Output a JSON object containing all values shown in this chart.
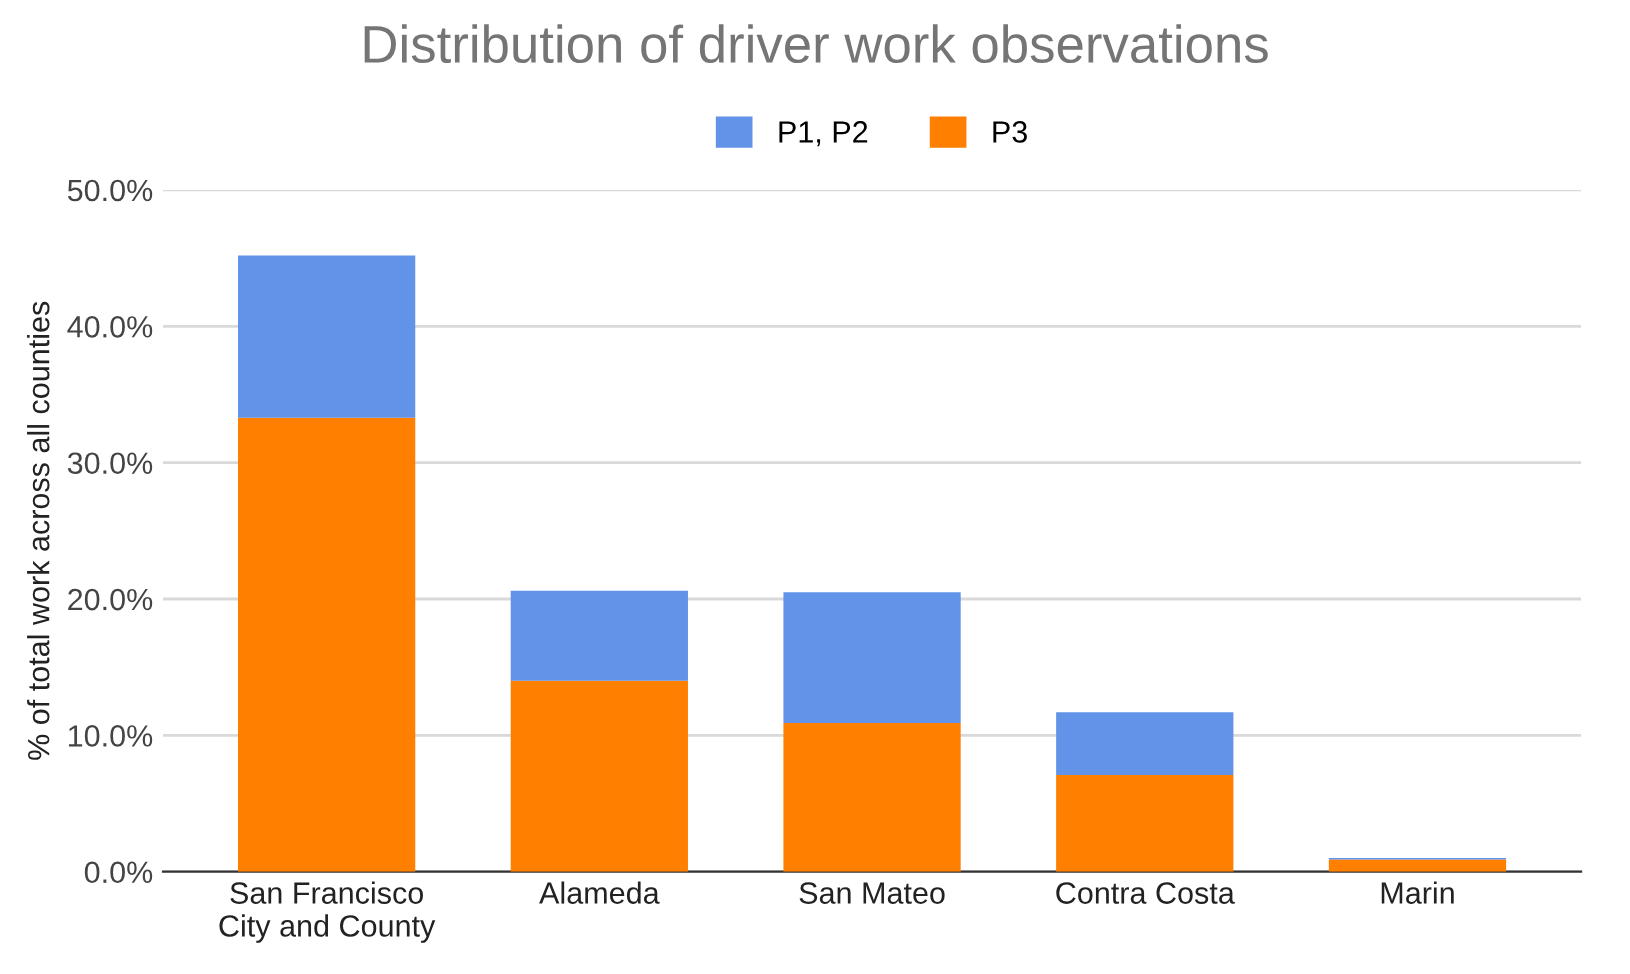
{
  "chart_data": {
    "type": "bar",
    "stacked": true,
    "title": "Distribution of driver work observations",
    "ylabel": "% of total work across all counties",
    "categories": [
      "San Francisco\nCity and County",
      "Alameda",
      "San Mateo",
      "Contra Costa",
      "Marin"
    ],
    "series": [
      {
        "name": "P3",
        "color": "#ff7f00",
        "values": [
          33.3,
          14.0,
          10.9,
          7.1,
          0.9
        ]
      },
      {
        "name": "P1, P2",
        "color": "#6193e8",
        "values": [
          11.9,
          6.6,
          9.6,
          4.6,
          0.1
        ]
      }
    ],
    "ylim": [
      0,
      50
    ],
    "yticks": [
      {
        "value": 0,
        "label": "0.0%"
      },
      {
        "value": 10,
        "label": "10.0%"
      },
      {
        "value": 20,
        "label": "20.0%"
      },
      {
        "value": 30,
        "label": "30.0%"
      },
      {
        "value": 40,
        "label": "40.0%"
      },
      {
        "value": 50,
        "label": "50.0%"
      }
    ],
    "grid": "y",
    "legend": "top"
  }
}
